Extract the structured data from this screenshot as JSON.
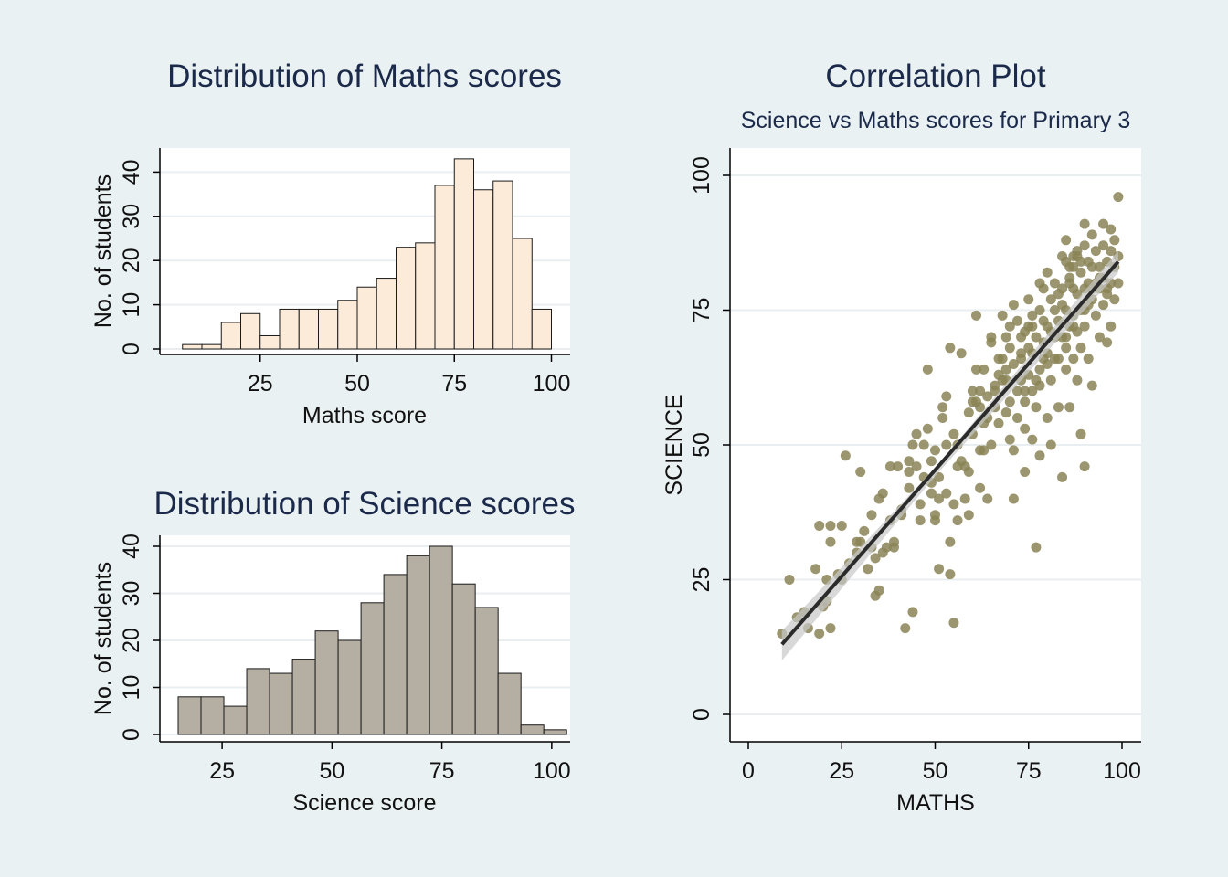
{
  "chart_data": [
    {
      "type": "bar",
      "title": "Distribution of Maths scores",
      "xlabel": "Maths score",
      "ylabel": "No. of students",
      "xticks": [
        25,
        50,
        75,
        100
      ],
      "yticks": [
        0,
        10,
        20,
        30,
        40
      ],
      "bin_edges": [
        5,
        10,
        15,
        20,
        25,
        30,
        35,
        40,
        45,
        50,
        55,
        60,
        65,
        70,
        75,
        80,
        85,
        90,
        95,
        100
      ],
      "values": [
        1,
        1,
        6,
        8,
        3,
        9,
        9,
        9,
        11,
        14,
        16,
        23,
        24,
        37,
        43,
        36,
        38,
        25,
        9
      ],
      "xlim": [
        0,
        105
      ],
      "ylim": [
        0,
        45
      ],
      "bar_color": "#fcebd9",
      "grid": true
    },
    {
      "type": "bar",
      "title": "Distribution of Science scores",
      "xlabel": "Science score",
      "ylabel": "No. of students",
      "xticks": [
        25,
        50,
        75,
        100
      ],
      "yticks": [
        0,
        10,
        20,
        30,
        40
      ],
      "bin_edges": [
        15,
        20.2,
        25.4,
        30.6,
        35.8,
        41,
        46.2,
        51.4,
        56.6,
        61.8,
        67,
        72.2,
        77.4,
        82.6,
        87.8,
        93,
        98.2,
        103.4
      ],
      "values": [
        8,
        8,
        6,
        14,
        13,
        16,
        22,
        20,
        28,
        34,
        38,
        40,
        32,
        27,
        13,
        2,
        1
      ],
      "xlim": [
        15,
        100
      ],
      "ylim": [
        0,
        42
      ],
      "bar_color": "#b5aea2",
      "grid": true
    },
    {
      "type": "scatter",
      "title": "Correlation Plot",
      "subtitle": "Science vs Maths scores for Primary 3",
      "xlabel": "MATHS",
      "ylabel": "SCIENCE",
      "xticks": [
        0,
        25,
        50,
        75,
        100
      ],
      "yticks": [
        0,
        25,
        50,
        75,
        100
      ],
      "xlim": [
        0,
        100
      ],
      "ylim": [
        0,
        100
      ],
      "point_color": "#8a8456",
      "fit_line": {
        "x1": 9,
        "y1": 13,
        "x2": 99,
        "y2": 84
      },
      "points": [
        [
          9,
          15
        ],
        [
          11,
          25
        ],
        [
          16,
          16
        ],
        [
          19,
          35
        ],
        [
          19,
          15
        ],
        [
          21,
          25
        ],
        [
          21,
          21
        ],
        [
          22,
          16
        ],
        [
          22,
          35
        ],
        [
          22,
          32
        ],
        [
          18,
          27
        ],
        [
          25,
          35
        ],
        [
          25,
          25
        ],
        [
          26,
          48
        ],
        [
          29,
          32
        ],
        [
          30,
          45
        ],
        [
          30,
          32
        ],
        [
          31,
          34
        ],
        [
          33,
          31
        ],
        [
          33,
          37
        ],
        [
          34,
          22
        ],
        [
          35,
          23
        ],
        [
          35,
          40
        ],
        [
          36,
          41
        ],
        [
          36,
          30
        ],
        [
          38,
          46
        ],
        [
          39,
          32
        ],
        [
          39,
          31
        ],
        [
          40,
          46
        ],
        [
          41,
          37
        ],
        [
          42,
          16
        ],
        [
          43,
          45
        ],
        [
          43,
          47
        ],
        [
          44,
          19
        ],
        [
          44,
          50
        ],
        [
          45,
          46
        ],
        [
          45,
          52
        ],
        [
          46,
          36
        ],
        [
          47,
          50
        ],
        [
          48,
          64
        ],
        [
          48,
          53
        ],
        [
          49,
          47
        ],
        [
          50,
          49
        ],
        [
          50,
          37
        ],
        [
          50,
          36
        ],
        [
          51,
          27
        ],
        [
          51,
          40
        ],
        [
          52,
          55
        ],
        [
          52,
          57
        ],
        [
          53,
          59
        ],
        [
          53,
          41
        ],
        [
          54,
          26
        ],
        [
          54,
          32
        ],
        [
          54,
          68
        ],
        [
          55,
          39
        ],
        [
          55,
          17
        ],
        [
          55,
          52
        ],
        [
          56,
          36
        ],
        [
          56,
          50
        ],
        [
          57,
          67
        ],
        [
          58,
          46
        ],
        [
          58,
          40
        ],
        [
          59,
          37
        ],
        [
          60,
          52
        ],
        [
          60,
          60
        ],
        [
          60,
          58
        ],
        [
          61,
          64
        ],
        [
          61,
          74
        ],
        [
          62,
          57
        ],
        [
          62,
          60
        ],
        [
          62,
          42
        ],
        [
          63,
          54
        ],
        [
          63,
          64
        ],
        [
          63,
          49
        ],
        [
          64,
          40
        ],
        [
          64,
          59
        ],
        [
          65,
          70
        ],
        [
          65,
          69
        ],
        [
          65,
          50
        ],
        [
          66,
          57
        ],
        [
          66,
          61
        ],
        [
          67,
          66
        ],
        [
          67,
          63
        ],
        [
          67,
          54
        ],
        [
          68,
          74
        ],
        [
          68,
          66
        ],
        [
          68,
          62
        ],
        [
          69,
          70
        ],
        [
          69,
          64
        ],
        [
          69,
          56
        ],
        [
          70,
          68
        ],
        [
          70,
          58
        ],
        [
          70,
          51
        ],
        [
          70,
          72
        ],
        [
          71,
          65
        ],
        [
          71,
          49
        ],
        [
          71,
          40
        ],
        [
          71,
          76
        ],
        [
          72,
          60
        ],
        [
          72,
          55
        ],
        [
          72,
          73
        ],
        [
          73,
          70
        ],
        [
          73,
          62
        ],
        [
          73,
          66
        ],
        [
          74,
          71
        ],
        [
          74,
          58
        ],
        [
          74,
          53
        ],
        [
          74,
          45
        ],
        [
          75,
          77
        ],
        [
          75,
          68
        ],
        [
          75,
          72
        ],
        [
          75,
          63
        ],
        [
          76,
          67
        ],
        [
          76,
          74
        ],
        [
          76,
          60
        ],
        [
          76,
          51
        ],
        [
          77,
          70
        ],
        [
          77,
          62
        ],
        [
          77,
          31
        ],
        [
          77,
          57
        ],
        [
          78,
          80
        ],
        [
          78,
          75
        ],
        [
          78,
          64
        ],
        [
          78,
          48
        ],
        [
          79,
          73
        ],
        [
          79,
          69
        ],
        [
          79,
          66
        ],
        [
          80,
          82
        ],
        [
          80,
          72
        ],
        [
          80,
          67
        ],
        [
          80,
          55
        ],
        [
          81,
          71
        ],
        [
          81,
          77
        ],
        [
          81,
          62
        ],
        [
          81,
          50
        ],
        [
          82,
          75
        ],
        [
          82,
          70
        ],
        [
          82,
          66
        ],
        [
          83,
          78
        ],
        [
          83,
          73
        ],
        [
          83,
          57
        ],
        [
          84,
          79
        ],
        [
          84,
          70
        ],
        [
          84,
          76
        ],
        [
          84,
          44
        ],
        [
          85,
          84
        ],
        [
          85,
          75
        ],
        [
          85,
          68
        ],
        [
          85,
          64
        ],
        [
          86,
          81
        ],
        [
          86,
          80
        ],
        [
          86,
          72
        ],
        [
          86,
          57
        ],
        [
          87,
          83
        ],
        [
          87,
          79
        ],
        [
          87,
          74
        ],
        [
          87,
          66
        ],
        [
          88,
          85
        ],
        [
          88,
          78
        ],
        [
          88,
          71
        ],
        [
          88,
          62
        ],
        [
          89,
          82
        ],
        [
          89,
          75
        ],
        [
          89,
          68
        ],
        [
          89,
          52
        ],
        [
          90,
          91
        ],
        [
          90,
          87
        ],
        [
          90,
          79
        ],
        [
          90,
          72
        ],
        [
          90,
          46
        ],
        [
          91,
          84
        ],
        [
          91,
          80
        ],
        [
          91,
          76
        ],
        [
          91,
          66
        ],
        [
          92,
          89
        ],
        [
          92,
          83
        ],
        [
          92,
          77
        ],
        [
          92,
          61
        ],
        [
          93,
          86
        ],
        [
          93,
          80
        ],
        [
          93,
          74
        ],
        [
          94,
          83
        ],
        [
          94,
          79
        ],
        [
          94,
          70
        ],
        [
          95,
          91
        ],
        [
          95,
          87
        ],
        [
          95,
          81
        ],
        [
          95,
          76
        ],
        [
          96,
          84
        ],
        [
          96,
          78
        ],
        [
          96,
          69
        ],
        [
          97,
          90
        ],
        [
          97,
          86
        ],
        [
          97,
          80
        ],
        [
          97,
          72
        ],
        [
          98,
          88
        ],
        [
          98,
          83
        ],
        [
          98,
          77
        ],
        [
          99,
          96
        ],
        [
          99,
          85
        ],
        [
          99,
          80
        ],
        [
          84,
          85
        ],
        [
          85,
          88
        ],
        [
          86,
          83
        ],
        [
          87,
          85
        ],
        [
          88,
          86
        ],
        [
          89,
          84
        ],
        [
          82,
          80
        ],
        [
          79,
          79
        ],
        [
          76,
          72
        ],
        [
          73,
          67
        ],
        [
          69,
          62
        ],
        [
          66,
          60
        ],
        [
          64,
          55
        ],
        [
          61,
          58
        ],
        [
          59,
          56
        ],
        [
          57,
          47
        ],
        [
          53,
          50
        ],
        [
          51,
          44
        ],
        [
          49,
          41
        ],
        [
          46,
          39
        ],
        [
          43,
          42
        ],
        [
          41,
          38
        ],
        [
          38,
          36
        ],
        [
          37,
          31
        ],
        [
          34,
          29
        ],
        [
          32,
          27
        ],
        [
          29,
          30
        ],
        [
          27,
          28
        ],
        [
          24,
          26
        ],
        [
          20,
          20
        ],
        [
          15,
          19
        ],
        [
          13,
          18
        ],
        [
          47,
          44
        ],
        [
          49,
          43
        ],
        [
          56,
          46
        ],
        [
          59,
          45
        ],
        [
          62,
          49
        ],
        [
          74,
          60
        ],
        [
          78,
          61
        ],
        [
          80,
          65
        ],
        [
          83,
          66
        ],
        [
          85,
          70
        ],
        [
          87,
          72
        ],
        [
          90,
          75
        ],
        [
          92,
          79
        ],
        [
          94,
          81
        ],
        [
          96,
          79
        ]
      ]
    }
  ]
}
